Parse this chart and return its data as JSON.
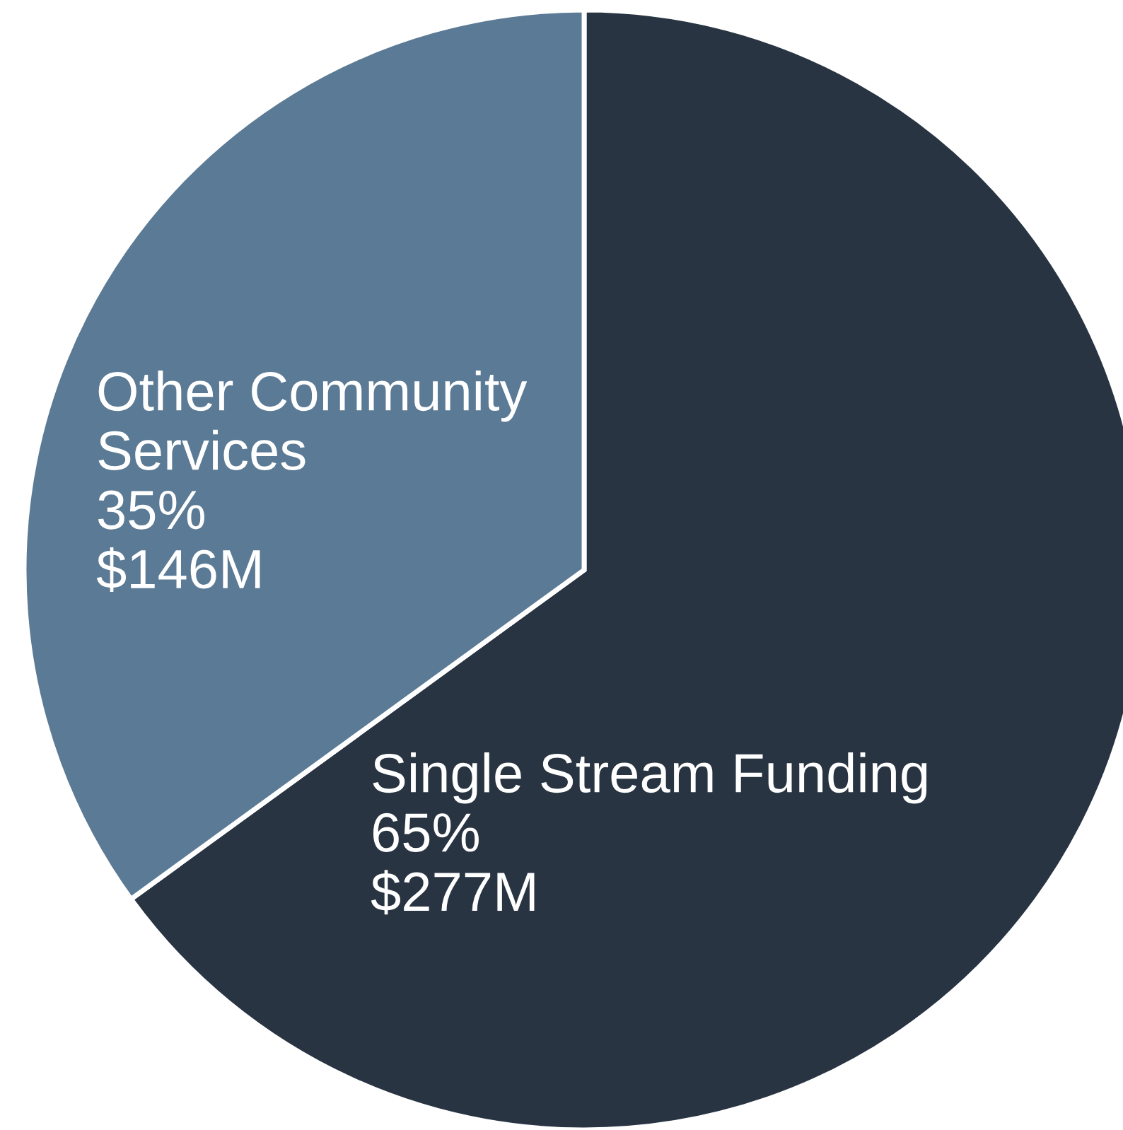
{
  "chart_data": {
    "type": "pie",
    "categories": [
      "Single Stream Funding",
      "Other Community Services"
    ],
    "values": [
      65,
      35
    ],
    "value_labels": [
      "65%\n$277M",
      "35%\n$146M"
    ],
    "colors": [
      "#283442",
      "#5b7a95"
    ]
  }
}
